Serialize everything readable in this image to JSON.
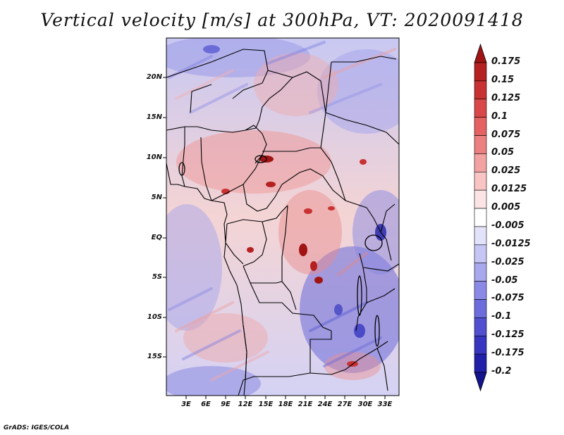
{
  "title": "Vertical velocity [m/s] at 300hPa, VT: 2020091418",
  "footer": "GrADS: IGES/COLA",
  "map": {
    "variable": "Vertical velocity",
    "units": "m/s",
    "level": "300hPa",
    "valid_time": "2020091418",
    "lat_range": [
      -20,
      25
    ],
    "lon_range": [
      0,
      35
    ],
    "lat_labels": [
      "20N",
      "15N",
      "10N",
      "5N",
      "EQ",
      "5S",
      "10S",
      "15S"
    ],
    "lon_labels": [
      "3E",
      "6E",
      "9E",
      "12E",
      "15E",
      "18E",
      "21E",
      "24E",
      "27E",
      "30E",
      "33E"
    ]
  },
  "colorbar": {
    "labels": [
      "0.175",
      "0.15",
      "0.125",
      "0.1",
      "0.075",
      "0.05",
      "0.025",
      "0.0125",
      "0.005",
      "-0.005",
      "-0.0125",
      "-0.025",
      "-0.05",
      "-0.075",
      "-0.1",
      "-0.125",
      "-0.175",
      "-0.2"
    ],
    "colors": [
      "#a01414",
      "#b52020",
      "#c83232",
      "#d84848",
      "#e46262",
      "#ec8080",
      "#f3a2a2",
      "#f8c4c4",
      "#fce4e4",
      "#ffffff",
      "#e2e2fb",
      "#c6c6f5",
      "#a8a8ee",
      "#8a8ae6",
      "#6c6cdc",
      "#5050d0",
      "#3636c0",
      "#2020a8",
      "#14148c"
    ]
  }
}
